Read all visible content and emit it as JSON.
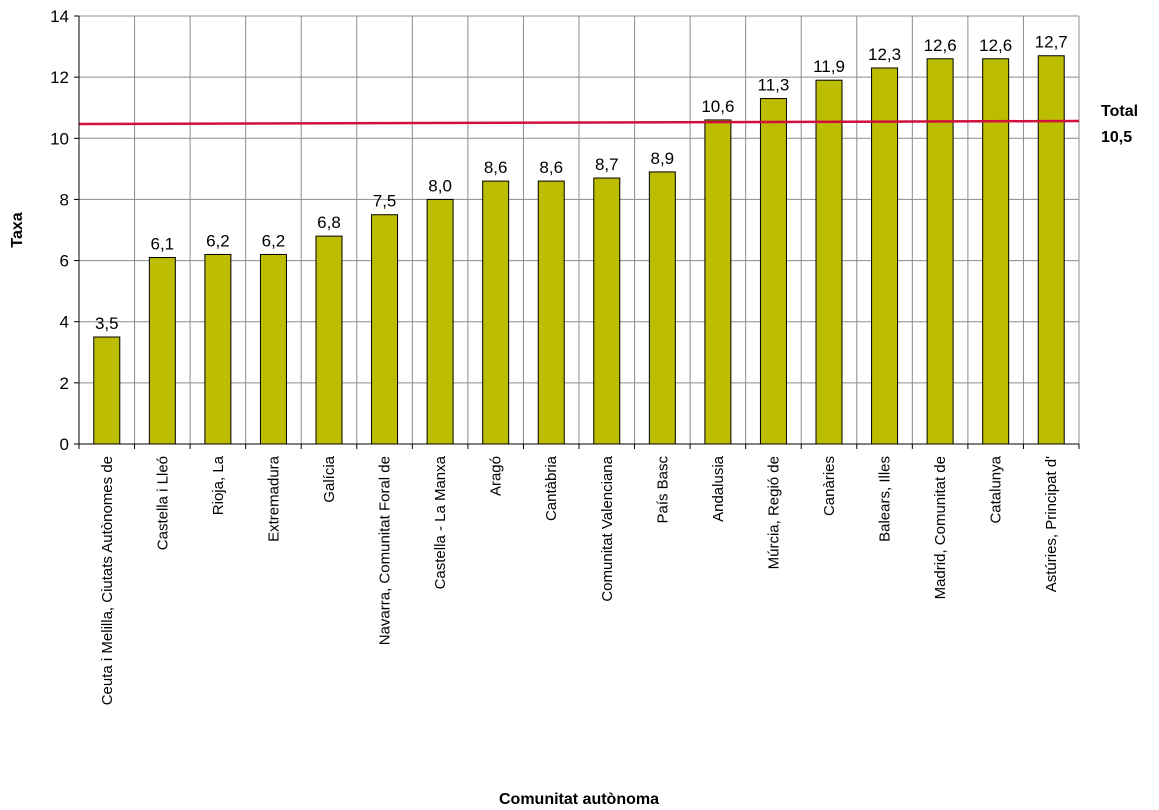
{
  "chart_data": {
    "type": "bar",
    "title": "",
    "xlabel": "Comunitat autònoma",
    "ylabel": "Taxa",
    "ylim": [
      0,
      14
    ],
    "yticks": [
      0,
      2,
      4,
      6,
      8,
      10,
      12,
      14
    ],
    "grid": true,
    "categories": [
      "Ceuta i Melilla, Ciutats Autònomes de",
      "Castella i Lleó",
      "Rioja, La",
      "Extremadura",
      "Galícia",
      "Navarra, Comunitat Foral de",
      "Castella - La Manxa",
      "Aragó",
      "Cantàbria",
      "Comunitat Valenciana",
      "País Basc",
      "Andalusia",
      "Múrcia, Regió de",
      "Canàries",
      "Balears, Illes",
      "Madrid, Comunitat de",
      "Catalunya",
      "Astúries, Principat d'"
    ],
    "values": [
      3.5,
      6.1,
      6.2,
      6.2,
      6.8,
      7.5,
      8.0,
      8.6,
      8.6,
      8.7,
      8.9,
      10.6,
      11.3,
      11.9,
      12.3,
      12.6,
      12.6,
      12.7
    ],
    "value_labels": [
      "3,5",
      "6,1",
      "6,2",
      "6,2",
      "6,8",
      "7,5",
      "8,0",
      "8,6",
      "8,6",
      "8,7",
      "8,9",
      "10,6",
      "11,3",
      "11,9",
      "12,3",
      "12,6",
      "12,6",
      "12,7"
    ],
    "reference_line": {
      "value": 10.5,
      "label_line1": "Total",
      "label_line2": "10,5",
      "color": "#d0103a"
    },
    "bar_color": "#bcbc00",
    "bar_edge_color": "#000000",
    "grid_color": "#8c8c8c"
  }
}
